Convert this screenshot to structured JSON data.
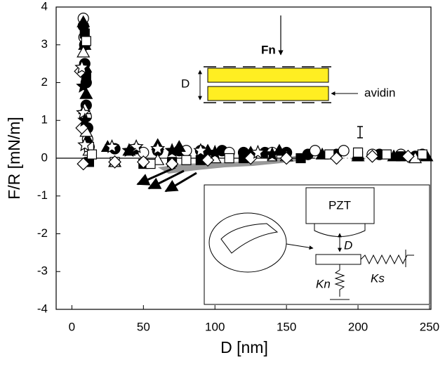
{
  "chart_data": {
    "type": "scatter",
    "xlabel": "D [nm]",
    "ylabel": "F/R [mN/m]",
    "xlim": [
      -11,
      251
    ],
    "ylim": [
      -4,
      4
    ],
    "xticks": [
      0,
      50,
      100,
      150,
      200,
      250
    ],
    "yticks": [
      -4,
      -3,
      -2,
      -1,
      0,
      1,
      2,
      3,
      4
    ],
    "annotations": [
      "Fn",
      "D",
      "avidin",
      "PZT",
      "D",
      "Kn",
      "Ks"
    ],
    "series": [
      {
        "marker": "circle",
        "filled": true,
        "color": "#000000",
        "x": [
          8,
          9,
          9,
          10,
          10,
          11,
          12,
          30,
          45,
          60,
          75,
          90,
          105,
          120,
          135,
          150,
          165,
          185,
          215,
          240
        ],
        "values": [
          3.5,
          3.0,
          2.5,
          2.0,
          1.4,
          0.8,
          0.3,
          0.25,
          0.25,
          0.2,
          0.2,
          0.2,
          0.2,
          0.15,
          0.15,
          0.15,
          0.1,
          0.1,
          0.1,
          0.05
        ]
      },
      {
        "marker": "circle",
        "filled": false,
        "color": "#000000",
        "x": [
          8,
          8.5,
          9,
          10,
          11,
          50,
          80,
          110,
          140,
          170,
          190,
          210,
          230,
          245
        ],
        "values": [
          3.7,
          3.2,
          2.3,
          1.1,
          0.5,
          0.15,
          0.2,
          0.15,
          0.15,
          0.2,
          0.2,
          0.1,
          0.1,
          0.1
        ]
      },
      {
        "marker": "triangle",
        "filled": true,
        "color": "#000000",
        "x": [
          8,
          9,
          9.5,
          10,
          11,
          25,
          40,
          60,
          75,
          95,
          125,
          145,
          175,
          200,
          225,
          248
        ],
        "values": [
          3.6,
          3.0,
          2.4,
          1.7,
          0.5,
          0.3,
          0.2,
          0.35,
          0.3,
          0.2,
          0.15,
          0.2,
          0.1,
          0.1,
          0.05,
          0.05
        ]
      },
      {
        "marker": "triangle",
        "filled": false,
        "color": "#000000",
        "x": [
          8,
          9,
          10,
          12,
          30,
          60,
          100,
          150,
          200,
          240
        ],
        "values": [
          2.8,
          1.3,
          0.7,
          0.2,
          -0.1,
          -0.05,
          0.0,
          0.05,
          0.05,
          0.0
        ]
      },
      {
        "marker": "square",
        "filled": true,
        "color": "#000000",
        "x": [
          9,
          10,
          12,
          50,
          70,
          90,
          120,
          160,
          200,
          230
        ],
        "values": [
          3.3,
          2.2,
          -0.1,
          -0.15,
          -0.1,
          -0.05,
          0.0,
          0.0,
          0.05,
          0.05
        ]
      },
      {
        "marker": "square",
        "filled": false,
        "color": "#000000",
        "x": [
          10,
          12,
          14,
          30,
          55,
          80,
          110,
          140,
          180,
          200,
          220,
          245
        ],
        "values": [
          3.1,
          0.3,
          0.1,
          -0.1,
          -0.15,
          -0.05,
          0.0,
          0.05,
          0.1,
          0.15,
          0.1,
          0.1
        ]
      },
      {
        "marker": "diamond",
        "filled": false,
        "color": "#000000",
        "x": [
          6,
          7,
          8,
          30,
          50,
          70,
          95,
          125,
          150,
          185,
          210,
          235
        ],
        "values": [
          2.3,
          0.8,
          -0.15,
          -0.1,
          -0.1,
          -0.15,
          -0.05,
          0,
          0,
          0,
          0.05,
          0.05
        ]
      },
      {
        "marker": "star",
        "filled": false,
        "color": "#000000",
        "x": [
          7,
          8,
          9,
          28,
          45,
          60,
          90,
          130
        ],
        "values": [
          2.4,
          1.2,
          0.35,
          0.3,
          0.3,
          0.25,
          0.2,
          0.15
        ]
      },
      {
        "marker": "star",
        "filled": true,
        "color": "#000000",
        "x": [
          8,
          9,
          40,
          70,
          100,
          140
        ],
        "values": [
          1.9,
          1.0,
          0.2,
          0.2,
          0.15,
          0.1
        ]
      }
    ]
  }
}
